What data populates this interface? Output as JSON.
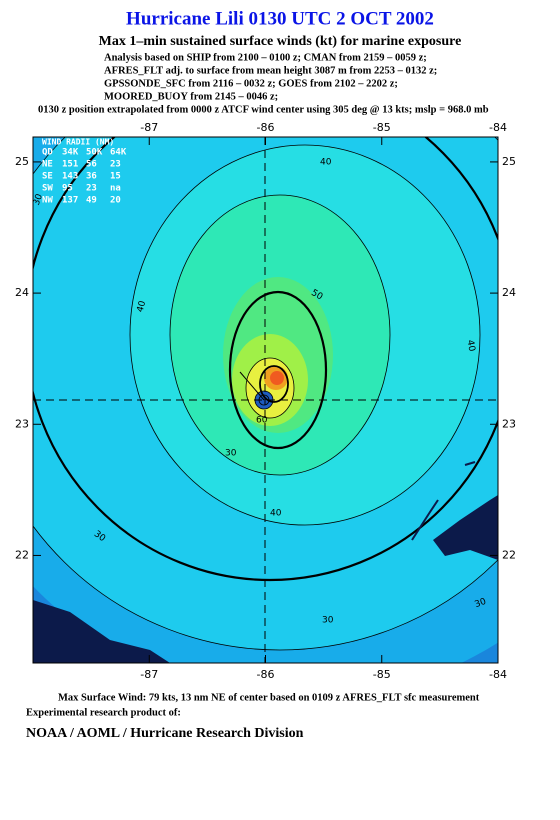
{
  "header": {
    "title": "Hurricane Lili 0130 UTC 2 OCT 2002",
    "subtitle": "Max 1–min sustained surface winds (kt) for marine exposure",
    "lines": [
      "Analysis based on  SHIP from 2100 – 0100 z;  CMAN from 2159 – 0059 z;",
      "AFRES_FLT adj. to surface from mean height 3087 m from 2253 – 0132 z;",
      "GPSSONDE_SFC from 2116 – 0032 z;  GOES from 2102 – 2202 z;",
      "MOORED_BUOY from 2145 – 0046 z;",
      "0130 z position extrapolated from 0000 z ATCF wind center using 305 deg @ 13 kts; mslp = 968.0 mb"
    ]
  },
  "map": {
    "xlim": [
      -88,
      -84
    ],
    "ylim": [
      21.18,
      25.19
    ],
    "xticks": [
      -87,
      -86,
      -85,
      -84
    ],
    "yticks": [
      22,
      23,
      24,
      25
    ],
    "wind_radii": {
      "title": "WIND RADII (NM)",
      "columns": [
        "QD",
        "34K",
        "50K",
        "64K"
      ],
      "rows": [
        [
          "NE",
          "151",
          "56",
          "23"
        ],
        [
          "SE",
          "143",
          "36",
          "15"
        ],
        [
          "SW",
          "95",
          "23",
          "na"
        ],
        [
          "NW",
          "137",
          "49",
          "20"
        ]
      ]
    },
    "contour_labels": [
      "40",
      "40",
      "40",
      "50",
      "30",
      "40",
      "30",
      "30",
      "30",
      "30",
      "60"
    ]
  },
  "footer": {
    "max_wind": "Max Surface Wind: 79 kts, 13 nm NE of center based on 0109 z AFRES_FLT sfc measurement",
    "note": "Experimental research product of:",
    "org": "NOAA / AOML / Hurricane Research Division"
  }
}
